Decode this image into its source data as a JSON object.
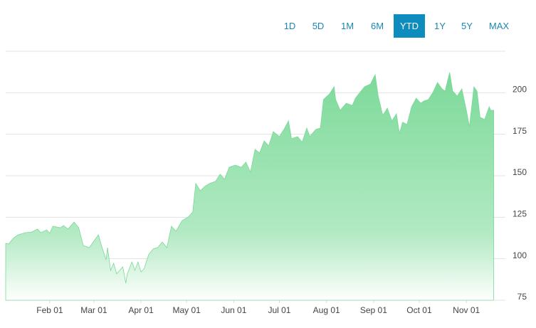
{
  "range_buttons": [
    "1D",
    "5D",
    "1M",
    "6M",
    "YTD",
    "1Y",
    "5Y",
    "MAX"
  ],
  "selected_range": "YTD",
  "chart_data": {
    "type": "area",
    "color": "#7bd998",
    "x": [
      2,
      4,
      7,
      10,
      15,
      19,
      23,
      25,
      29,
      31,
      33,
      38,
      40,
      43,
      47,
      50,
      53,
      57,
      61,
      63,
      65,
      68,
      69,
      71,
      73,
      75,
      79,
      81,
      82,
      85,
      87,
      89,
      91,
      93,
      96,
      99,
      102,
      105,
      108,
      111,
      114,
      118,
      122,
      125,
      127,
      130,
      133,
      136,
      140,
      143,
      146,
      149,
      153,
      157,
      160,
      163,
      166,
      169,
      172,
      175,
      178,
      182,
      185,
      188,
      190,
      194,
      197,
      200,
      202,
      206,
      209,
      211,
      215,
      218,
      219,
      222,
      226,
      230,
      232,
      235,
      238,
      242,
      245,
      247,
      250,
      253,
      256,
      259,
      261,
      263,
      266,
      269,
      272,
      275,
      277,
      280,
      283,
      286,
      289,
      291,
      294,
      296,
      299,
      302,
      305,
      307,
      310,
      312,
      314,
      317,
      320,
      321,
      323
    ],
    "values": [
      109.3,
      108.9,
      112.3,
      114.4,
      115.7,
      116.1,
      117.9,
      115.7,
      117.4,
      115.3,
      119.6,
      118.7,
      120,
      117.9,
      122.1,
      118.7,
      108,
      106.7,
      111.9,
      114.4,
      108,
      99.4,
      106.7,
      93,
      97.3,
      90.9,
      95.1,
      85.3,
      90.9,
      98.1,
      93,
      98.1,
      92.1,
      93.9,
      102.4,
      105.9,
      106.7,
      110.1,
      106.7,
      119.6,
      116.6,
      123,
      125.1,
      128.1,
      145.3,
      141,
      143.6,
      145.3,
      146.6,
      150.9,
      147.9,
      155.1,
      156.4,
      155.1,
      158.2,
      152.2,
      165.9,
      163.7,
      171,
      168,
      176.6,
      173.6,
      177.9,
      183,
      172.3,
      173.6,
      170.2,
      178.7,
      173.6,
      177.9,
      178.7,
      195.9,
      199.3,
      203.6,
      195.9,
      189.4,
      193.7,
      192.4,
      196.7,
      200.2,
      203.6,
      205.3,
      210.9,
      198,
      186.4,
      190.7,
      183,
      187.3,
      175.3,
      182.2,
      180.9,
      191.6,
      196.7,
      193.7,
      195,
      195.9,
      200.2,
      206.2,
      202.3,
      201,
      212.2,
      201,
      198,
      202.3,
      189.4,
      179.6,
      203.6,
      201,
      185.2,
      183.9,
      191.6,
      189.4,
      189.4
    ],
    "xlim": [
      2,
      333
    ],
    "xticks": [
      {
        "value": 31,
        "label": "Feb 01"
      },
      {
        "value": 60,
        "label": "Mar 01"
      },
      {
        "value": 91,
        "label": "Apr 01"
      },
      {
        "value": 121,
        "label": "May 01"
      },
      {
        "value": 152,
        "label": "Jun 01"
      },
      {
        "value": 182,
        "label": "Jul 01"
      },
      {
        "value": 213,
        "label": "Aug 01"
      },
      {
        "value": 244,
        "label": "Sep 01"
      },
      {
        "value": 274,
        "label": "Oct 01"
      },
      {
        "value": 305,
        "label": "Nov 01"
      }
    ],
    "ylim": [
      75,
      225
    ],
    "yticks": [
      75,
      100,
      125,
      150,
      175,
      200
    ],
    "grid": true
  }
}
